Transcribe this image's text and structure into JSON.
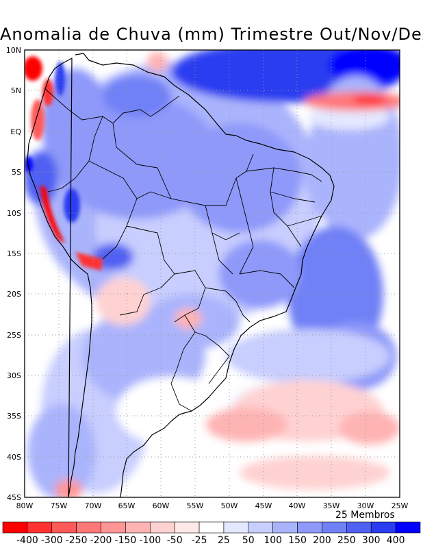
{
  "title": "Anomalia de Chuva (mm) Trimestre Out/Nov/Dez",
  "members_label": "25 Membros",
  "lat_labels": [
    "10N",
    "5N",
    "EQ",
    "5S",
    "10S",
    "15S",
    "20S",
    "25S",
    "30S",
    "35S",
    "40S",
    "45S"
  ],
  "lon_labels": [
    "80W",
    "75W",
    "70W",
    "65W",
    "60W",
    "55W",
    "50W",
    "45W",
    "40W",
    "35W",
    "30W",
    "25W"
  ],
  "colorbar": {
    "labels": [
      "-400",
      "-300",
      "-250",
      "-200",
      "-150",
      "-100",
      "-50",
      "-25",
      "25",
      "50",
      "100",
      "150",
      "200",
      "250",
      "300",
      "400"
    ],
    "colors": [
      "#ff0000",
      "#ff3030",
      "#ff5a5a",
      "#ff7878",
      "#ff9696",
      "#ffb4b4",
      "#ffd2d2",
      "#ffe8e8",
      "#ffffff",
      "#e4e8ff",
      "#c8cefe",
      "#aab4fc",
      "#8e99fa",
      "#7080f6",
      "#5060f2",
      "#2a3cf0",
      "#0000ff"
    ]
  }
}
